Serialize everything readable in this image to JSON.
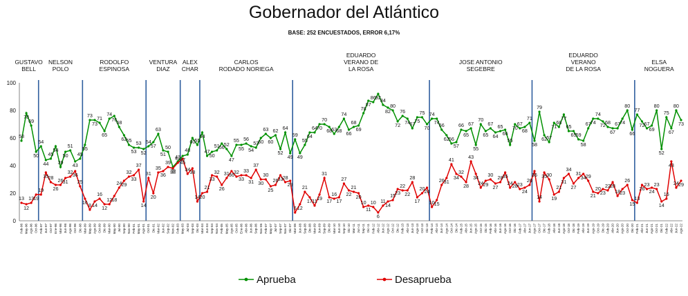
{
  "title": "Gobernador del Atlántico",
  "subtitle": "BASE: 252 ENCUESTADOS, ERROR 6,17%",
  "chart_data": {
    "type": "line",
    "title": "Gobernador del Atlántico",
    "subtitle": "BASE: 252 ENCUESTADOS, ERROR 6,17%",
    "ylim": [
      0,
      100
    ],
    "yticks": [
      0,
      20,
      40,
      60,
      80,
      100
    ],
    "grid": false,
    "legend_position": "bottom",
    "governors": [
      {
        "label": [
          "GUSTAVO",
          "BELL"
        ],
        "start": 0,
        "end": 3
      },
      {
        "label": [
          "NELSON",
          "POLO"
        ],
        "start": 4,
        "end": 12
      },
      {
        "label": [
          "RODOLFO",
          "ESPINOSA"
        ],
        "start": 13,
        "end": 25
      },
      {
        "label": [
          "VENTURA",
          "DIAZ"
        ],
        "start": 26,
        "end": 32
      },
      {
        "label": [
          "ALEX",
          "CHAR"
        ],
        "start": 33,
        "end": 36
      },
      {
        "label": [
          "CARLOS",
          "RODADO NORIEGA"
        ],
        "start": 37,
        "end": 55
      },
      {
        "label": [
          "EDUARDO",
          "VERANO DE",
          "LA ROSA"
        ],
        "start": 56,
        "end": 83
      },
      {
        "label": [
          "JOSE ANTONIO",
          "SEGEBRE"
        ],
        "start": 84,
        "end": 104
      },
      {
        "label": [
          "EDUARDO",
          "VERANO",
          "DE LA ROSA"
        ],
        "start": 105,
        "end": 125
      },
      {
        "label": [
          "ELSA",
          "NOGUERA"
        ],
        "start": 126,
        "end": 135
      }
    ],
    "series": [
      {
        "name": "Aprueba",
        "color": "#009000",
        "values": [
          58,
          78,
          69,
          50,
          54,
          44,
          45,
          54,
          39,
          50,
          51,
          43,
          45,
          55,
          73,
          73,
          71,
          65,
          74,
          76,
          68,
          62,
          55,
          53,
          53,
          52,
          54,
          57,
          63,
          51,
          50,
          39,
          43,
          47,
          48,
          60,
          55,
          64,
          47,
          50,
          51,
          56,
          52,
          47,
          55,
          55,
          56,
          54,
          53,
          60,
          63,
          60,
          62,
          52,
          64,
          49,
          59,
          49,
          55,
          64,
          64,
          70,
          70,
          68,
          63,
          68,
          74,
          66,
          68,
          69,
          78,
          87,
          86,
          92,
          84,
          82,
          80,
          72,
          76,
          74,
          67,
          75,
          75,
          70,
          74,
          74,
          66,
          62,
          56,
          57,
          66,
          65,
          67,
          55,
          70,
          65,
          67,
          64,
          65,
          66,
          55,
          70,
          67,
          68,
          71,
          58,
          79,
          62,
          57,
          71,
          68,
          77,
          65,
          65,
          59,
          58,
          67,
          74,
          74,
          72,
          68,
          67,
          67,
          74,
          80,
          66,
          77,
          72,
          67,
          69,
          80,
          52,
          75,
          67,
          80,
          73
        ]
      },
      {
        "name": "Desaprueba",
        "color": "#e00000",
        "values": [
          13,
          12,
          13,
          19,
          19,
          35,
          28,
          26,
          26,
          31,
          32,
          36,
          25,
          16,
          8,
          14,
          16,
          12,
          12,
          18,
          24,
          29,
          32,
          33,
          37,
          14,
          31,
          20,
          35,
          36,
          39,
          38,
          42,
          45,
          34,
          38,
          14,
          20,
          21,
          33,
          32,
          26,
          31,
          36,
          32,
          33,
          33,
          31,
          37,
          30,
          30,
          25,
          26,
          33,
          28,
          29,
          6,
          12,
          21,
          17,
          11,
          19,
          31,
          17,
          16,
          17,
          27,
          22,
          21,
          20,
          10,
          11,
          10,
          6,
          11,
          14,
          15,
          23,
          22,
          22,
          28,
          17,
          20,
          24,
          10,
          15,
          26,
          31,
          41,
          34,
          32,
          28,
          43,
          34,
          24,
          29,
          30,
          27,
          28,
          35,
          24,
          28,
          23,
          24,
          26,
          36,
          14,
          35,
          30,
          19,
          21,
          31,
          34,
          27,
          31,
          34,
          29,
          21,
          20,
          23,
          22,
          28,
          18,
          23,
          26,
          15,
          13,
          26,
          23,
          24,
          23,
          14,
          16,
          43,
          24,
          29
        ]
      }
    ],
    "dates": [
      "Feb-96",
      "May-96",
      "Ago-96",
      "Oct-96",
      "Feb-97",
      "Jun-97",
      "Oct-97",
      "Ene-98",
      "Mar-98",
      "Jun-98",
      "Ago-98",
      "Oct-98",
      "Dic-98",
      "Mar-99",
      "May-99",
      "Ago-99",
      "Oct-99",
      "Dic-99",
      "Mar-00",
      "May-00",
      "Jul-00",
      "Sep-00",
      "Nov-00",
      "Feb-01",
      "May-01",
      "Ago-01",
      "Oct-01",
      "Dic-01",
      "Mar-02",
      "Jun-02",
      "Sep-02",
      "Nov-02",
      "Feb-03",
      "May-03",
      "Jul-03",
      "Sep-03",
      "Dic-03",
      "Mar-04",
      "Jun-04",
      "Sep-04",
      "Nov-04",
      "Feb-05",
      "May-05",
      "Ago-05",
      "Oct-05",
      "Ene-06",
      "Abr-06",
      "Jun-06",
      "Sep-06",
      "Nov-06",
      "Feb-07",
      "May-07",
      "Jul-07",
      "Sep-07",
      "Nov-07",
      "Dic-07",
      "Mar-08",
      "Jun-08",
      "Sep-08",
      "Dic-08",
      "Mar-09",
      "Jun-09",
      "Sep-09",
      "Dic-09",
      "Mar-10",
      "Jun-10",
      "Sep-10",
      "Dic-10",
      "Mar-11",
      "Jun-11",
      "Sep-11",
      "Dic-11",
      "Feb-12",
      "Abr-12",
      "Jun-12",
      "Ago-12",
      "Oct-12",
      "Dic-12",
      "Feb-13",
      "Abr-13",
      "Jun-13",
      "Ago-13",
      "Oct-13",
      "Dic-13",
      "Feb-14",
      "Abr-14",
      "Jun-14",
      "Ago-14",
      "Oct-14",
      "Dic-14",
      "Feb-15",
      "Abr-15",
      "Jun-15",
      "Ago-15",
      "Oct-15",
      "Dic-15",
      "Feb-16",
      "Abr-16",
      "Jun-16",
      "Ago-16",
      "Oct-16",
      "Dic-16",
      "Feb-17",
      "Abr-17",
      "Jun-17",
      "Ago-17",
      "Oct-17",
      "Dic-17",
      "Feb-18",
      "Abr-18",
      "Jun-18",
      "Ago-18",
      "Oct-18",
      "Dic-18",
      "Feb-19",
      "Abr-19",
      "Jun-19",
      "Ago-19",
      "Oct-19",
      "Dic-19",
      "Feb-20",
      "Abr-20",
      "Jun-20",
      "Ago-20",
      "Oct-20",
      "Dic-20",
      "Feb-21",
      "Abr-21",
      "Jun-21",
      "Ago-21",
      "Oct-21",
      "Dic-21",
      "Feb-22",
      "Abr-22",
      "Jun-22",
      "Ago-22"
    ]
  }
}
